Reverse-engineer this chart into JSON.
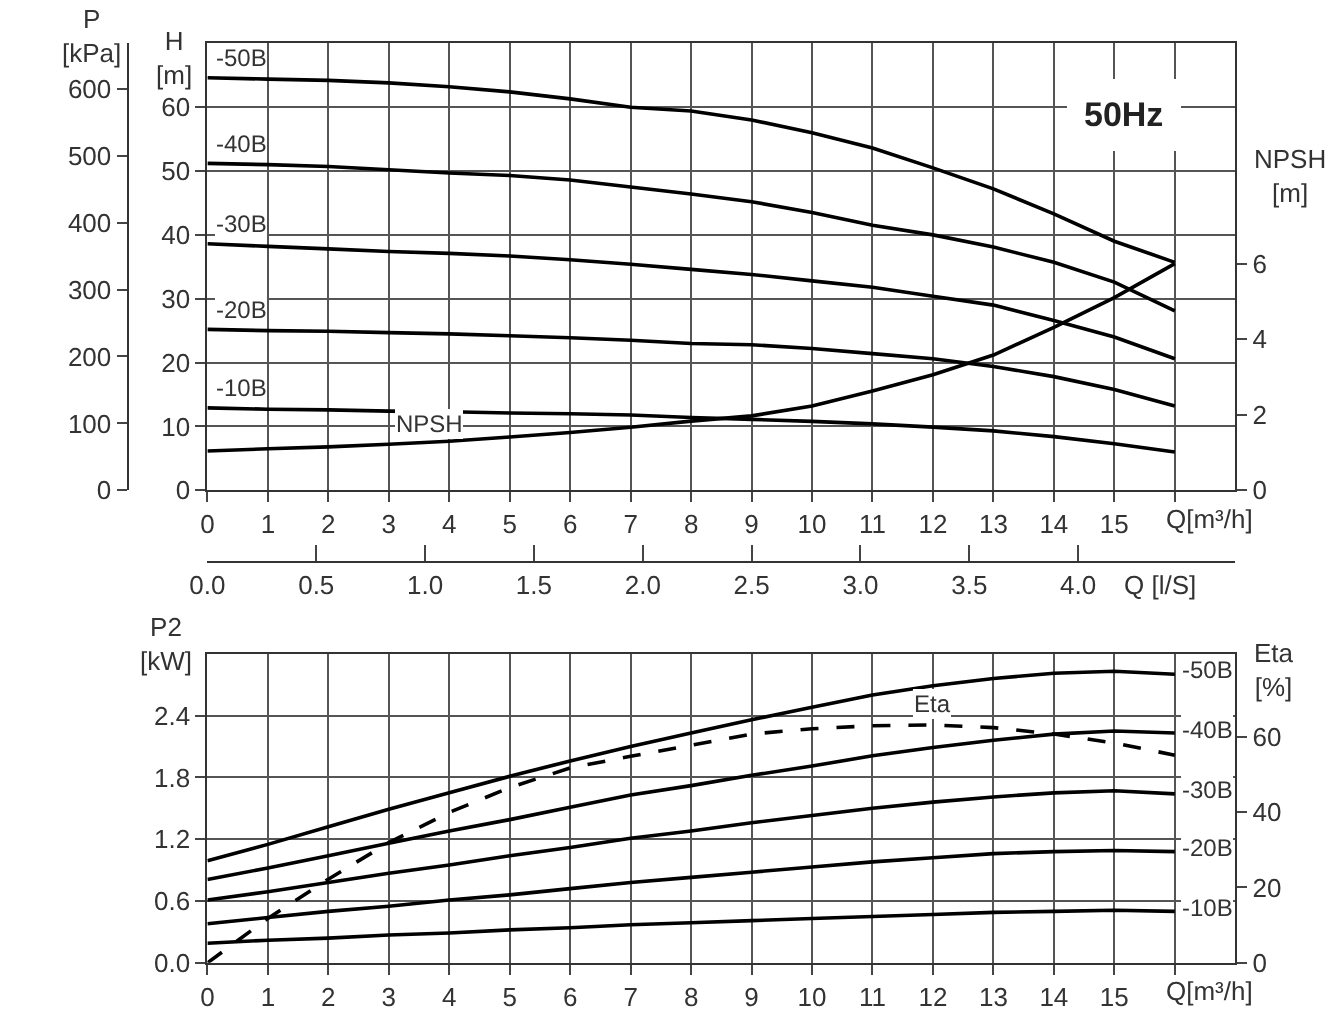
{
  "chart_data": [
    {
      "type": "line",
      "x": [
        0,
        1,
        2,
        3,
        4,
        5,
        6,
        7,
        8,
        9,
        10,
        11,
        12,
        13,
        14,
        15,
        16
      ],
      "xlim": [
        0,
        17
      ],
      "xticks": [
        0,
        1,
        2,
        3,
        4,
        5,
        6,
        7,
        8,
        9,
        10,
        11,
        12,
        13,
        14,
        15,
        {
          "value": 16,
          "label": null
        }
      ],
      "xlabel": "Q[m³/h]",
      "x2lim": [
        0,
        4.722
      ],
      "x2ticks": [
        {
          "value": 0,
          "label": "0.0"
        },
        {
          "value": 0.5,
          "label": "0.5"
        },
        {
          "value": 1,
          "label": "1.0"
        },
        {
          "value": 1.5,
          "label": "1.5"
        },
        {
          "value": 2,
          "label": "2.0"
        },
        {
          "value": 2.5,
          "label": "2.5"
        },
        {
          "value": 3,
          "label": "3.0"
        },
        {
          "value": 3.5,
          "label": "3.5"
        },
        {
          "value": 4,
          "label": "4.0"
        }
      ],
      "x2label": "Q [l/S]",
      "ylabel": "H [m]",
      "ylim": [
        0,
        70
      ],
      "yticks": [
        0,
        10,
        20,
        30,
        40,
        50,
        60
      ],
      "y2label": "P [kPa]",
      "y2lim": [
        0,
        668
      ],
      "y2ticks": [
        0,
        100,
        200,
        300,
        400,
        500,
        600
      ],
      "y3label": "NPSH [m]",
      "y3lim": [
        0,
        11.83
      ],
      "y3ticks": [
        0,
        2,
        4,
        6
      ],
      "grid": true,
      "annotations": [
        "50Hz"
      ],
      "series": [
        {
          "name": "-50B",
          "color": "#000000",
          "values": [
            64.6,
            64.4,
            64.2,
            63.8,
            63.2,
            62.4,
            61.3,
            60.0,
            59.4,
            58.0,
            56.0,
            53.6,
            50.5,
            47.2,
            43.3,
            39.0,
            35.7
          ]
        },
        {
          "name": "-40B",
          "color": "#000000",
          "values": [
            51.2,
            51.0,
            50.7,
            50.2,
            49.7,
            49.3,
            48.6,
            47.5,
            46.4,
            45.2,
            43.5,
            41.5,
            40.0,
            38.1,
            35.7,
            32.6,
            28.1
          ]
        },
        {
          "name": "-30B",
          "color": "#000000",
          "values": [
            38.6,
            38.2,
            37.8,
            37.4,
            37.1,
            36.7,
            36.1,
            35.4,
            34.6,
            33.8,
            32.8,
            31.8,
            30.4,
            29.0,
            26.6,
            24.0,
            20.6
          ]
        },
        {
          "name": "-20B",
          "color": "#000000",
          "values": [
            25.2,
            25.0,
            24.9,
            24.7,
            24.5,
            24.2,
            23.9,
            23.5,
            23.0,
            22.8,
            22.2,
            21.4,
            20.6,
            19.4,
            17.8,
            15.8,
            13.2
          ]
        },
        {
          "name": "-10B",
          "color": "#000000",
          "values": [
            12.9,
            12.7,
            12.6,
            12.4,
            12.3,
            12.1,
            12.0,
            11.8,
            11.4,
            11.1,
            10.8,
            10.4,
            9.9,
            9.3,
            8.4,
            7.3,
            6.0
          ]
        },
        {
          "name": "NPSH",
          "color": "#000000",
          "axis": "y3",
          "values": [
            1.04,
            1.1,
            1.15,
            1.22,
            1.3,
            1.41,
            1.53,
            1.67,
            1.83,
            1.97,
            2.23,
            2.63,
            3.06,
            3.58,
            4.31,
            5.1,
            6.0
          ]
        }
      ]
    },
    {
      "type": "line",
      "x": [
        0,
        1,
        2,
        3,
        4,
        5,
        6,
        7,
        8,
        9,
        10,
        11,
        12,
        13,
        14,
        15,
        16
      ],
      "xlim": [
        0,
        17
      ],
      "xticks": [
        0,
        1,
        2,
        3,
        4,
        5,
        6,
        7,
        8,
        9,
        10,
        11,
        12,
        13,
        14,
        15,
        {
          "value": 16,
          "label": null
        }
      ],
      "xlabel": "Q[m³/h]",
      "ylabel": "P2 [kW]",
      "ylim": [
        0,
        3
      ],
      "yticks": [
        {
          "value": 0,
          "label": "0.0"
        },
        {
          "value": 0.6,
          "label": "0.6"
        },
        {
          "value": 1.2,
          "label": "1.2"
        },
        {
          "value": 1.8,
          "label": "1.8"
        },
        {
          "value": 2.4,
          "label": "2.4"
        }
      ],
      "y2label": "Eta [%]",
      "y2lim": [
        0,
        82
      ],
      "y2ticks": [
        0,
        20,
        40,
        60
      ],
      "grid": true,
      "series": [
        {
          "name": "-50B",
          "color": "#000000",
          "values": [
            0.99,
            1.15,
            1.32,
            1.49,
            1.65,
            1.81,
            1.96,
            2.1,
            2.23,
            2.36,
            2.48,
            2.6,
            2.69,
            2.76,
            2.81,
            2.83,
            2.8
          ]
        },
        {
          "name": "-40B",
          "color": "#000000",
          "values": [
            0.81,
            0.92,
            1.04,
            1.16,
            1.28,
            1.39,
            1.51,
            1.63,
            1.72,
            1.82,
            1.91,
            2.01,
            2.09,
            2.16,
            2.22,
            2.25,
            2.23
          ]
        },
        {
          "name": "-30B",
          "color": "#000000",
          "values": [
            0.61,
            0.69,
            0.78,
            0.87,
            0.95,
            1.04,
            1.12,
            1.21,
            1.28,
            1.36,
            1.43,
            1.5,
            1.56,
            1.61,
            1.65,
            1.67,
            1.64
          ]
        },
        {
          "name": "-20B",
          "color": "#000000",
          "values": [
            0.38,
            0.44,
            0.5,
            0.55,
            0.61,
            0.66,
            0.72,
            0.78,
            0.83,
            0.88,
            0.93,
            0.98,
            1.02,
            1.06,
            1.08,
            1.09,
            1.08
          ]
        },
        {
          "name": "-10B",
          "color": "#000000",
          "values": [
            0.19,
            0.22,
            0.24,
            0.27,
            0.29,
            0.32,
            0.34,
            0.37,
            0.39,
            0.41,
            0.43,
            0.45,
            0.47,
            0.49,
            0.5,
            0.51,
            0.5
          ]
        },
        {
          "name": "Eta",
          "color": "#000000",
          "axis": "y2",
          "line_style": "dashed",
          "values": [
            0,
            11.8,
            22.2,
            31.9,
            39.9,
            46.5,
            51.7,
            54.8,
            57.7,
            60.7,
            62.1,
            62.9,
            63.1,
            62.4,
            60.7,
            58.3,
            55.1
          ]
        }
      ]
    }
  ]
}
